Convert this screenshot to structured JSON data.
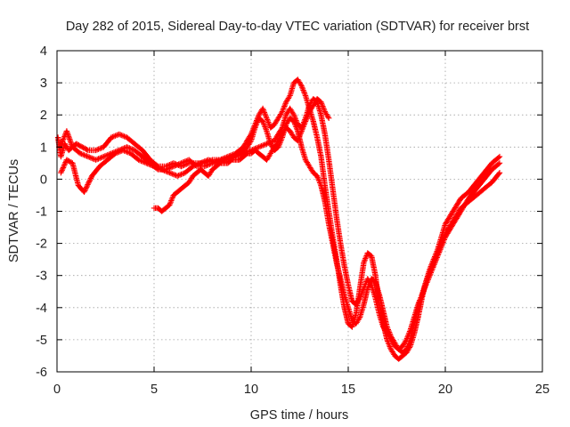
{
  "chart_data": {
    "type": "scatter",
    "title": "Day 282 of 2015, Sidereal Day-to-day VTEC variation (SDTVAR) for receiver brst",
    "xlabel": "GPS time / hours",
    "ylabel": "SDTVAR / TECUs",
    "xlim": [
      0,
      25
    ],
    "ylim": [
      -6,
      4
    ],
    "xticks": [
      0,
      5,
      10,
      15,
      20,
      25
    ],
    "yticks": [
      -6,
      -5,
      -4,
      -3,
      -2,
      -1,
      0,
      1,
      2,
      3,
      4
    ],
    "grid": true,
    "marker": "plus",
    "colors": {
      "series": "#ff0000",
      "grid": "#a0a0a0",
      "axis": "#000000"
    },
    "series": [
      {
        "x": [
          0.05,
          0.2,
          0.4,
          0.6,
          0.8,
          1.0,
          1.3,
          1.6,
          2.0,
          2.4,
          2.8,
          3.2,
          3.6,
          4.0,
          4.4,
          4.8,
          5.2,
          5.6,
          6.0,
          6.4,
          6.8,
          7.2,
          7.6,
          8.0,
          8.4,
          8.8,
          9.2,
          9.6,
          10.0,
          10.2,
          10.4,
          10.6,
          10.8,
          11.0,
          11.2,
          11.4,
          11.6,
          11.8,
          12.0,
          12.2,
          12.4,
          12.6,
          12.8,
          13.0,
          13.2,
          13.4,
          13.6,
          13.8,
          14.0,
          14.2,
          14.4,
          14.6,
          14.8,
          15.0,
          15.2,
          15.4,
          15.6,
          15.8,
          16.0,
          16.2,
          16.4,
          16.6,
          16.8,
          17.0,
          17.2,
          17.4,
          17.6,
          17.8,
          18.0,
          18.2,
          18.4,
          18.6,
          18.8,
          19.0,
          19.2,
          19.4,
          19.6,
          19.8,
          20.0,
          20.4,
          20.8,
          21.2,
          21.6,
          22.0,
          22.4,
          22.8
        ],
        "y": [
          1.3,
          0.7,
          1.1,
          0.9,
          1.0,
          1.1,
          1.0,
          0.9,
          0.9,
          1.0,
          1.3,
          1.4,
          1.3,
          1.1,
          0.9,
          0.6,
          0.4,
          0.4,
          0.5,
          0.4,
          0.5,
          0.5,
          0.5,
          0.6,
          0.6,
          0.7,
          0.8,
          1.0,
          1.4,
          1.7,
          2.0,
          2.2,
          1.9,
          1.6,
          1.7,
          1.9,
          2.1,
          2.4,
          2.6,
          3.0,
          3.1,
          2.9,
          2.6,
          2.2,
          1.8,
          1.3,
          0.7,
          -0.2,
          -1.0,
          -1.8,
          -2.5,
          -3.3,
          -4.0,
          -4.5,
          -4.6,
          -4.2,
          -3.4,
          -2.6,
          -2.3,
          -2.4,
          -3.0,
          -3.9,
          -4.5,
          -5.0,
          -5.3,
          -5.5,
          -5.6,
          -5.5,
          -5.4,
          -5.2,
          -4.8,
          -4.3,
          -3.7,
          -3.2,
          -2.8,
          -2.5,
          -2.2,
          -1.8,
          -1.4,
          -1.0,
          -0.6,
          -0.4,
          -0.1,
          0.2,
          0.5,
          0.7
        ]
      },
      {
        "x": [
          0.1,
          0.3,
          0.5,
          0.8,
          1.2,
          1.6,
          2.0,
          2.4,
          2.8,
          3.2,
          3.6,
          4.0,
          4.4,
          4.8,
          5.2,
          5.6,
          6.0,
          6.4,
          6.8,
          7.2,
          7.6,
          8.0,
          8.4,
          8.8,
          9.2,
          9.6,
          10.0,
          10.4,
          10.8,
          11.2,
          11.6,
          11.8,
          12.0,
          12.2,
          12.4,
          12.6,
          12.8,
          13.0,
          13.2,
          13.4,
          13.6,
          13.8,
          14.0,
          14.2,
          14.4,
          14.6,
          14.8,
          15.0,
          15.2,
          15.4,
          15.6,
          15.8,
          16.0,
          16.2,
          16.4,
          16.6,
          16.8,
          17.0,
          17.2,
          17.4,
          17.6,
          17.8,
          18.0,
          18.2,
          18.4,
          18.6,
          18.8,
          19.0,
          19.2,
          19.4,
          19.6,
          19.8,
          20.0,
          20.4,
          20.8,
          21.2,
          21.6,
          22.0,
          22.4,
          22.8
        ],
        "y": [
          1.0,
          1.2,
          1.5,
          1.0,
          0.8,
          0.7,
          0.6,
          0.7,
          0.8,
          0.9,
          1.0,
          0.9,
          0.7,
          0.5,
          0.3,
          0.3,
          0.4,
          0.5,
          0.6,
          0.4,
          0.4,
          0.5,
          0.6,
          0.6,
          0.7,
          0.8,
          0.9,
          1.0,
          1.1,
          1.2,
          1.6,
          2.0,
          2.2,
          2.0,
          1.7,
          1.6,
          1.9,
          2.3,
          2.5,
          2.4,
          2.0,
          1.4,
          0.6,
          -0.3,
          -1.2,
          -2.0,
          -2.7,
          -3.3,
          -3.8,
          -3.9,
          -3.7,
          -3.4,
          -3.1,
          -3.3,
          -3.7,
          -4.2,
          -4.6,
          -4.8,
          -5.0,
          -5.2,
          -5.3,
          -5.2,
          -5.0,
          -4.7,
          -4.3,
          -3.9,
          -3.6,
          -3.3,
          -3.0,
          -2.7,
          -2.4,
          -2.1,
          -1.8,
          -1.4,
          -1.0,
          -0.6,
          -0.3,
          0.0,
          0.3,
          0.5
        ]
      },
      {
        "x": [
          0.2,
          0.5,
          0.8,
          1.1,
          1.4,
          1.8,
          2.2,
          2.6,
          3.0,
          3.4,
          3.8,
          4.2,
          4.6,
          5.0,
          5.4,
          5.8,
          6.2,
          6.6,
          7.0,
          7.4,
          7.8,
          8.2,
          8.6,
          9.0,
          9.4,
          9.8,
          10.0,
          10.2,
          10.4,
          10.6,
          10.8,
          11.0,
          11.2,
          11.4,
          11.6,
          11.8,
          12.0,
          12.2,
          12.4,
          12.6,
          12.8,
          13.0,
          13.2,
          13.4,
          13.6,
          13.8,
          14.0,
          14.2,
          14.4,
          14.6,
          14.8,
          15.0,
          15.2,
          15.4,
          15.6,
          15.8,
          16.0,
          16.2,
          16.4,
          16.6,
          16.8,
          17.0,
          17.2,
          17.4,
          17.6,
          17.8,
          18.0,
          18.2,
          18.4,
          18.6,
          18.8,
          19.0,
          19.2,
          19.4,
          19.6,
          19.8,
          20.0,
          20.4,
          20.8,
          21.2,
          21.6,
          22.0,
          22.4,
          22.8
        ],
        "y": [
          0.2,
          0.6,
          0.5,
          -0.2,
          -0.4,
          0.1,
          0.4,
          0.6,
          0.8,
          0.9,
          0.8,
          0.6,
          0.5,
          0.4,
          0.3,
          0.2,
          0.1,
          0.2,
          0.4,
          0.5,
          0.6,
          0.5,
          0.6,
          0.7,
          0.8,
          1.0,
          1.2,
          1.6,
          1.9,
          1.8,
          1.5,
          1.1,
          0.9,
          1.0,
          1.3,
          1.7,
          1.9,
          1.8,
          1.5,
          1.0,
          0.6,
          0.4,
          0.2,
          0.1,
          -0.2,
          -0.7,
          -1.4,
          -2.0,
          -2.6,
          -3.1,
          -3.6,
          -4.0,
          -4.4,
          -4.5,
          -4.3,
          -3.9,
          -3.4,
          -3.1,
          -3.2,
          -3.6,
          -4.1,
          -4.6,
          -4.9,
          -5.1,
          -5.3,
          -5.4,
          -5.3,
          -5.0,
          -4.5,
          -4.0,
          -3.6,
          -3.2,
          -2.9,
          -2.6,
          -2.3,
          -2.0,
          -1.7,
          -1.3,
          -0.9,
          -0.7,
          -0.5,
          -0.3,
          -0.1,
          0.2
        ]
      },
      {
        "x": [
          5.0,
          5.2,
          5.4,
          5.6,
          5.8,
          6.0,
          6.2,
          6.4,
          6.6,
          6.8,
          7.0,
          7.2,
          7.4,
          7.6,
          7.8,
          8.0,
          8.2,
          8.4,
          8.6,
          8.8,
          9.0,
          9.2,
          9.4,
          9.6,
          9.8,
          10.0,
          10.2,
          10.4,
          10.6,
          10.8,
          11.0,
          11.2,
          11.4,
          11.6,
          11.8,
          12.0,
          12.2,
          12.4,
          12.6,
          12.8,
          13.0,
          13.2,
          13.4,
          13.6,
          13.8,
          14.0
        ],
        "y": [
          -0.9,
          -0.9,
          -1.0,
          -0.9,
          -0.8,
          -0.5,
          -0.4,
          -0.3,
          -0.2,
          -0.1,
          0.1,
          0.2,
          0.3,
          0.2,
          0.1,
          0.3,
          0.4,
          0.5,
          0.5,
          0.5,
          0.6,
          0.6,
          0.6,
          0.7,
          0.8,
          0.8,
          0.9,
          0.8,
          0.7,
          0.6,
          0.8,
          1.0,
          1.2,
          1.4,
          1.6,
          1.5,
          1.3,
          1.2,
          1.5,
          1.8,
          2.1,
          2.3,
          2.5,
          2.4,
          2.1,
          1.9
        ]
      }
    ]
  }
}
